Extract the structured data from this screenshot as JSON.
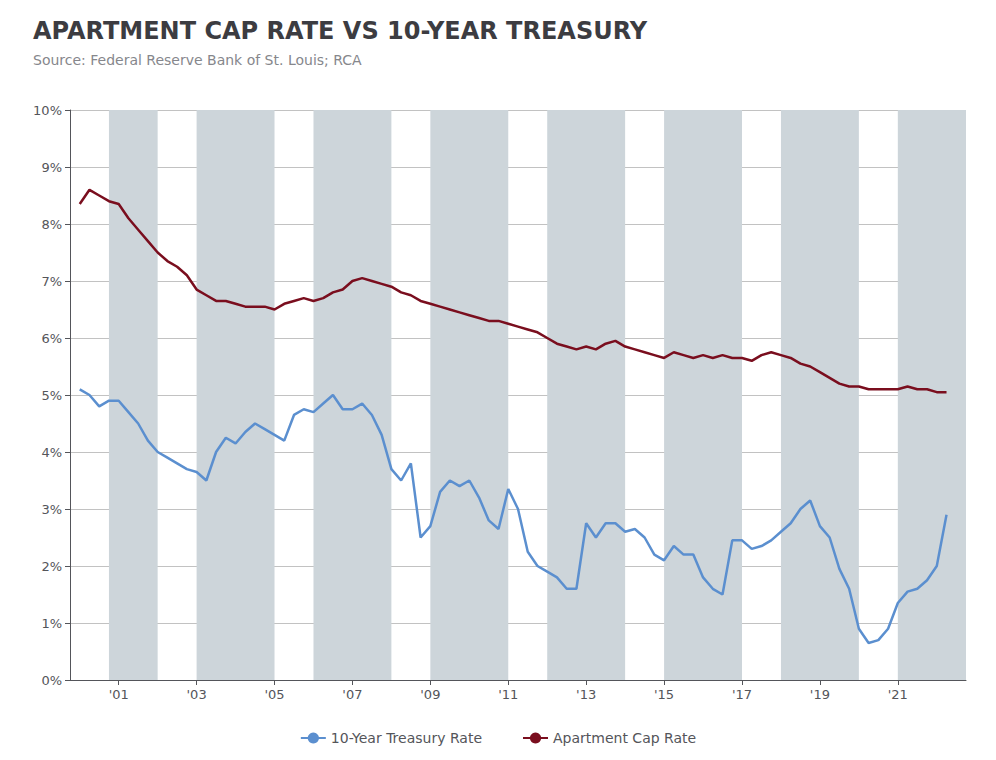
{
  "chart_data": {
    "type": "line",
    "title": "APARTMENT CAP RATE VS 10-YEAR TREASURY",
    "subtitle": "Source: Federal Reserve Bank of St. Louis; RCA",
    "x": [
      2000.0,
      2000.25,
      2000.5,
      2000.75,
      2001.0,
      2001.25,
      2001.5,
      2001.75,
      2002.0,
      2002.25,
      2002.5,
      2002.75,
      2003.0,
      2003.25,
      2003.5,
      2003.75,
      2004.0,
      2004.25,
      2004.5,
      2004.75,
      2005.0,
      2005.25,
      2005.5,
      2005.75,
      2006.0,
      2006.25,
      2006.5,
      2006.75,
      2007.0,
      2007.25,
      2007.5,
      2007.75,
      2008.0,
      2008.25,
      2008.5,
      2008.75,
      2009.0,
      2009.25,
      2009.5,
      2009.75,
      2010.0,
      2010.25,
      2010.5,
      2010.75,
      2011.0,
      2011.25,
      2011.5,
      2011.75,
      2012.0,
      2012.25,
      2012.5,
      2012.75,
      2013.0,
      2013.25,
      2013.5,
      2013.75,
      2014.0,
      2014.25,
      2014.5,
      2014.75,
      2015.0,
      2015.25,
      2015.5,
      2015.75,
      2016.0,
      2016.25,
      2016.5,
      2016.75,
      2017.0,
      2017.25,
      2017.5,
      2017.75,
      2018.0,
      2018.25,
      2018.5,
      2018.75,
      2019.0,
      2019.25,
      2019.5,
      2019.75,
      2020.0,
      2020.25,
      2020.5,
      2020.75,
      2021.0,
      2021.25,
      2021.5,
      2021.75,
      2022.0,
      2022.25
    ],
    "series": [
      {
        "name": "10-Year Treasury Rate",
        "color": "#5b8fcf",
        "values": [
          5.1,
          5.0,
          4.8,
          4.9,
          4.9,
          4.7,
          4.5,
          4.2,
          4.0,
          3.9,
          3.8,
          3.7,
          3.65,
          3.5,
          4.0,
          4.25,
          4.15,
          4.35,
          4.5,
          4.4,
          4.3,
          4.2,
          4.65,
          4.75,
          4.7,
          4.85,
          5.0,
          4.75,
          4.75,
          4.85,
          4.65,
          4.3,
          3.7,
          3.5,
          3.8,
          2.5,
          2.7,
          3.3,
          3.5,
          3.4,
          3.5,
          3.2,
          2.8,
          2.65,
          3.35,
          3.0,
          2.25,
          2.0,
          1.9,
          1.8,
          1.6,
          1.6,
          2.75,
          2.5,
          2.75,
          2.75,
          2.6,
          2.65,
          2.5,
          2.2,
          2.1,
          2.35,
          2.2,
          2.2,
          1.8,
          1.6,
          1.5,
          2.45,
          2.45,
          2.3,
          2.35,
          2.45,
          2.6,
          2.75,
          3.0,
          3.15,
          2.7,
          2.5,
          1.95,
          1.6,
          0.9,
          0.65,
          0.7,
          0.9,
          1.35,
          1.55,
          1.6,
          1.75,
          2.0,
          2.9
        ]
      },
      {
        "name": "Apartment Cap Rate",
        "color": "#7a0e1e",
        "values": [
          8.35,
          8.6,
          8.5,
          8.4,
          8.35,
          8.1,
          7.9,
          7.7,
          7.5,
          7.35,
          7.25,
          7.1,
          6.85,
          6.75,
          6.65,
          6.65,
          6.6,
          6.55,
          6.55,
          6.55,
          6.5,
          6.6,
          6.65,
          6.7,
          6.65,
          6.7,
          6.8,
          6.85,
          7.0,
          7.05,
          7.0,
          6.95,
          6.9,
          6.8,
          6.75,
          6.65,
          6.6,
          6.55,
          6.5,
          6.45,
          6.4,
          6.35,
          6.3,
          6.3,
          6.25,
          6.2,
          6.15,
          6.1,
          6.0,
          5.9,
          5.85,
          5.8,
          5.85,
          5.8,
          5.9,
          5.95,
          5.85,
          5.8,
          5.75,
          5.7,
          5.65,
          5.75,
          5.7,
          5.65,
          5.7,
          5.65,
          5.7,
          5.65,
          5.65,
          5.6,
          5.7,
          5.75,
          5.7,
          5.65,
          5.55,
          5.5,
          5.4,
          5.3,
          5.2,
          5.15,
          5.15,
          5.1,
          5.1,
          5.1,
          5.1,
          5.15,
          5.1,
          5.1,
          5.05,
          5.05
        ]
      }
    ],
    "shaded_bands": {
      "color": "#cdd5da",
      "ranges": [
        [
          2000.75,
          2002.0
        ],
        [
          2003.0,
          2005.0
        ],
        [
          2006.0,
          2008.0
        ],
        [
          2009.0,
          2011.0
        ],
        [
          2012.0,
          2014.0
        ],
        [
          2015.0,
          2017.0
        ],
        [
          2018.0,
          2020.0
        ],
        [
          2021.0,
          2022.75
        ]
      ]
    },
    "xlim": [
      1999.75,
      2022.75
    ],
    "xticks": [
      {
        "value": 2001,
        "label": "'01"
      },
      {
        "value": 2003,
        "label": "'03"
      },
      {
        "value": 2005,
        "label": "'05"
      },
      {
        "value": 2007,
        "label": "'07"
      },
      {
        "value": 2009,
        "label": "'09"
      },
      {
        "value": 2011,
        "label": "'11"
      },
      {
        "value": 2013,
        "label": "'13"
      },
      {
        "value": 2015,
        "label": "'15"
      },
      {
        "value": 2017,
        "label": "'17"
      },
      {
        "value": 2019,
        "label": "'19"
      },
      {
        "value": 2021,
        "label": "'21"
      }
    ],
    "ylim": [
      0,
      10
    ],
    "yticks": [
      {
        "value": 0,
        "label": "0%"
      },
      {
        "value": 1,
        "label": "1%"
      },
      {
        "value": 2,
        "label": "2%"
      },
      {
        "value": 3,
        "label": "3%"
      },
      {
        "value": 4,
        "label": "4%"
      },
      {
        "value": 5,
        "label": "5%"
      },
      {
        "value": 6,
        "label": "6%"
      },
      {
        "value": 7,
        "label": "7%"
      },
      {
        "value": 8,
        "label": "8%"
      },
      {
        "value": 9,
        "label": "9%"
      },
      {
        "value": 10,
        "label": "10%"
      }
    ],
    "grid": "y",
    "legend": "bottom"
  }
}
